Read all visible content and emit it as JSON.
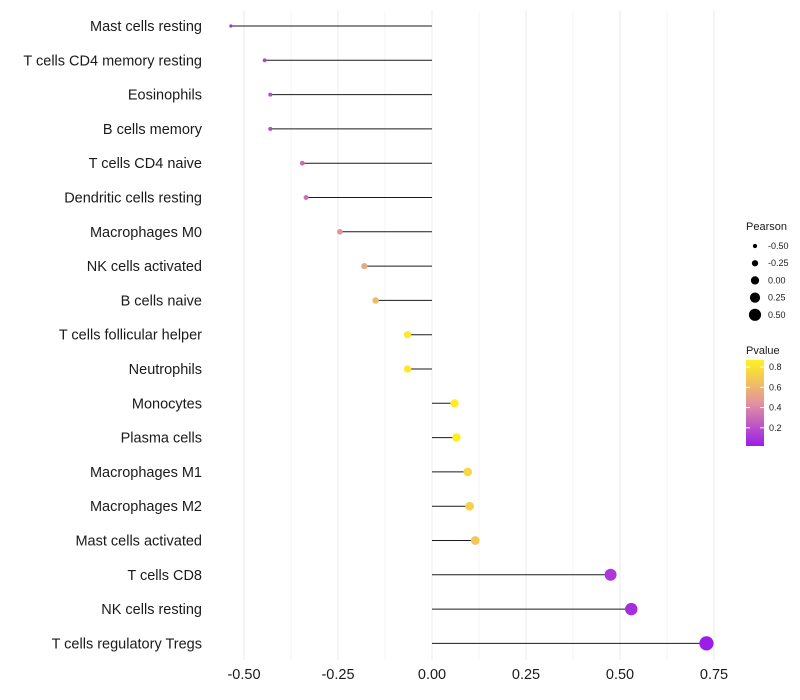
{
  "chart_data": {
    "type": "lollipop",
    "title": "",
    "xlabel": "",
    "ylabel": "",
    "xlim": [
      -0.56,
      0.78
    ],
    "x_ticks": [
      -0.5,
      -0.25,
      0.0,
      0.25,
      0.5,
      0.75
    ],
    "x_tick_labels": [
      "-0.50",
      "-0.25",
      "0.00",
      "0.25",
      "0.50",
      "0.75"
    ],
    "grid": true,
    "categories": [
      "Mast cells resting",
      "T cells CD4 memory resting",
      "Eosinophils",
      "B cells memory",
      "T cells CD4 naive",
      "Dendritic cells resting",
      "Macrophages M0",
      "NK cells activated",
      "B cells naive",
      "T cells follicular helper",
      "Neutrophils",
      "Monocytes",
      "Plasma cells",
      "Macrophages M1",
      "Macrophages M2",
      "Mast cells activated",
      "T cells CD8",
      "NK cells resting",
      "T cells regulatory  Tregs"
    ],
    "pearson": [
      -0.535,
      -0.445,
      -0.43,
      -0.43,
      -0.345,
      -0.335,
      -0.245,
      -0.18,
      -0.15,
      -0.065,
      -0.065,
      0.06,
      0.065,
      0.095,
      0.1,
      0.115,
      0.475,
      0.53,
      0.73
    ],
    "pvalue": [
      0.08,
      0.15,
      0.18,
      0.18,
      0.3,
      0.32,
      0.45,
      0.55,
      0.62,
      0.82,
      0.82,
      0.85,
      0.85,
      0.75,
      0.72,
      0.68,
      0.12,
      0.08,
      0.02
    ],
    "legend": {
      "position": "right",
      "size": {
        "title": "Pearson",
        "labels": [
          "-0.50",
          "-0.25",
          "0.00",
          "0.25",
          "0.50"
        ],
        "values": [
          -0.5,
          -0.25,
          0.0,
          0.25,
          0.5
        ]
      },
      "color": {
        "title": "Pvalue",
        "labels": [
          "0.8",
          "0.6",
          "0.4",
          "0.2"
        ],
        "values": [
          0.8,
          0.6,
          0.4,
          0.2
        ],
        "range": [
          0.02,
          0.87
        ],
        "low_color": "#9b1ee8",
        "mid_color": "#e392a0",
        "high_color": "#fff21e"
      }
    }
  }
}
